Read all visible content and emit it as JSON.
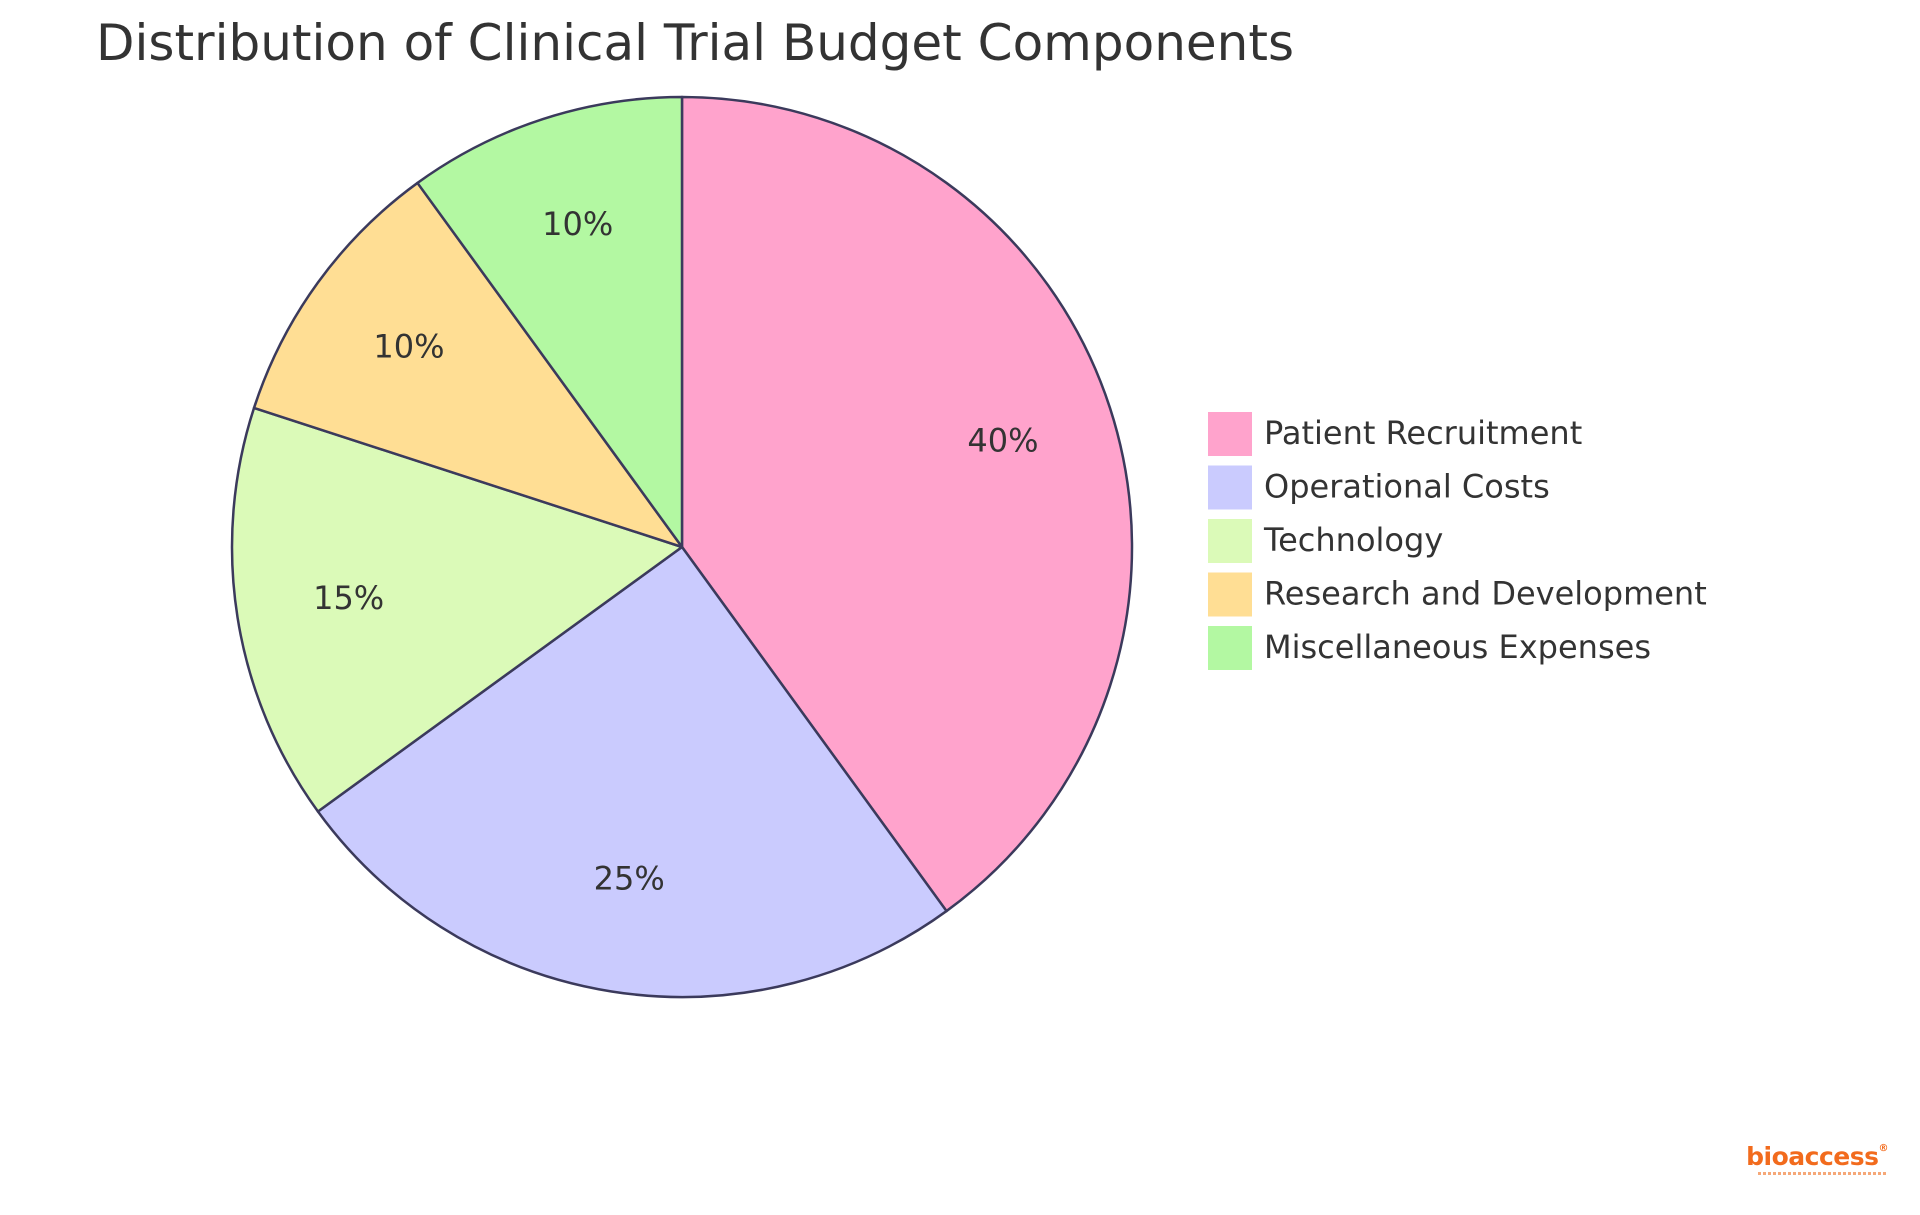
{
  "chart_data": {
    "type": "pie",
    "title": "Distribution of Clinical Trial Budget Components",
    "slices": [
      {
        "name": "Patient Recruitment",
        "value": 40,
        "label": "40%",
        "color": "#ffa3cc"
      },
      {
        "name": "Operational Costs",
        "value": 25,
        "label": "25%",
        "color": "#cacbfe"
      },
      {
        "name": "Technology",
        "value": 15,
        "label": "15%",
        "color": "#dbfab8"
      },
      {
        "name": "Research and Development",
        "value": 10,
        "label": "10%",
        "color": "#ffde94"
      },
      {
        "name": "Miscellaneous Expenses",
        "value": 10,
        "label": "10%",
        "color": "#b3f8a2"
      }
    ],
    "legend_position": "right",
    "start_angle": "top",
    "direction": "clockwise",
    "stroke_color": "#3b3a5c"
  },
  "logo": {
    "text": "bioaccess",
    "mark": "®",
    "color": "#f26b1d"
  }
}
